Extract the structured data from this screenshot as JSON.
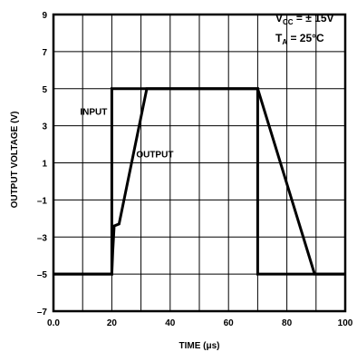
{
  "chart_data": {
    "type": "line",
    "xlabel": "TIME (μs)",
    "ylabel": "OUTPUT VOLTAGE (V)",
    "xlim": [
      0,
      100
    ],
    "ylim": [
      -7,
      9
    ],
    "xticks": [
      0,
      20,
      40,
      60,
      80,
      100
    ],
    "xtick_labels": [
      "0.0",
      "20",
      "40",
      "60",
      "80",
      "100"
    ],
    "yticks": [
      9,
      7,
      5,
      3,
      1,
      -1,
      -3,
      -5,
      -7
    ],
    "ytick_labels": [
      "9",
      "7",
      "5",
      "3",
      "1",
      "–1",
      "–3",
      "–5",
      "–7"
    ],
    "xgrid_step": 10,
    "ygrid_step": 2,
    "grid": true,
    "annotation": {
      "vcc_prefix": "V",
      "vcc_sub": "CC",
      "vcc_suffix": " = ± 15V",
      "ta_prefix": "T",
      "ta_sub": "A",
      "ta_suffix": " = 25°C"
    },
    "series": [
      {
        "name": "INPUT",
        "x": [
          0,
          20,
          20,
          70,
          70,
          100
        ],
        "y": [
          -5,
          -5,
          5,
          5,
          -5,
          -5
        ]
      },
      {
        "name": "OUTPUT",
        "x": [
          0,
          20,
          20.3,
          20.8,
          22.5,
          32,
          70,
          89.5,
          100
        ],
        "y": [
          -5,
          -5,
          -3.8,
          -2.4,
          -2.3,
          5,
          5,
          -5,
          -5
        ]
      }
    ]
  }
}
